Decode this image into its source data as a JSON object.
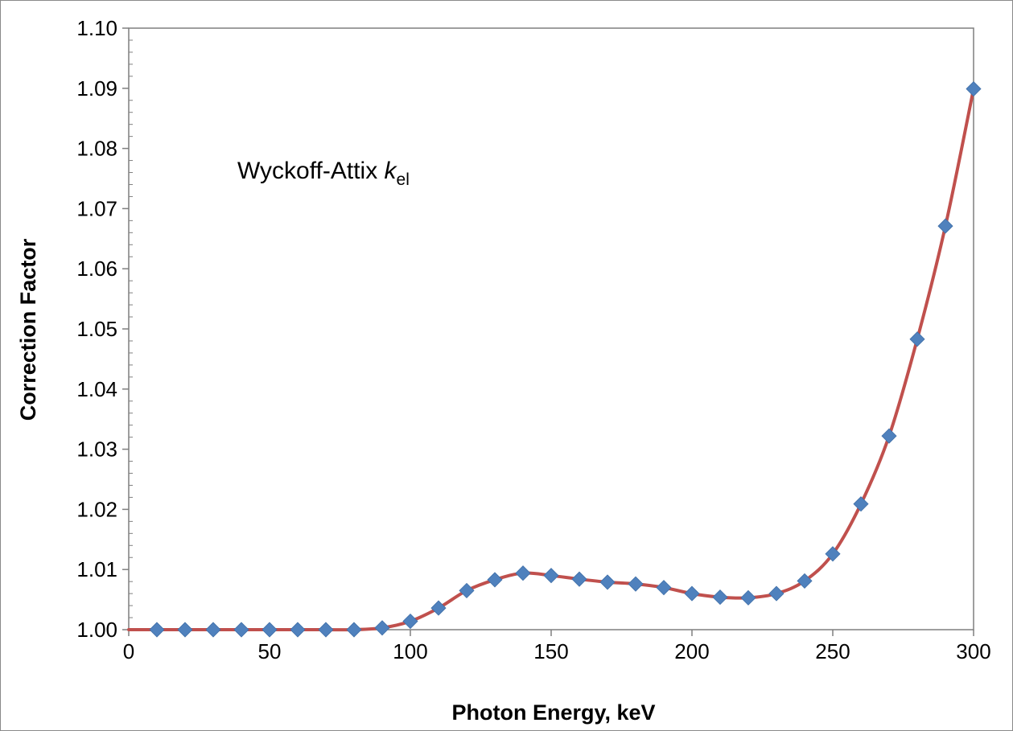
{
  "chart_data": {
    "type": "line",
    "xlabel": "Photon Energy, keV",
    "ylabel": "Correction Factor",
    "xlim": [
      0,
      300
    ],
    "ylim": [
      1.0,
      1.1
    ],
    "x_ticks": [
      "0",
      "50",
      "100",
      "150",
      "200",
      "250",
      "300"
    ],
    "y_ticks": [
      "1.00",
      "1.01",
      "1.02",
      "1.03",
      "1.04",
      "1.05",
      "1.06",
      "1.07",
      "1.08",
      "1.09",
      "1.10"
    ],
    "grid": false,
    "annotation": {
      "text": "Wyckoff-Attix ",
      "symbol": "k",
      "subscript": "el"
    },
    "series": [
      {
        "x": [
          0,
          10,
          20,
          30,
          40,
          50,
          60,
          70,
          80,
          90,
          100,
          110,
          120,
          130,
          140,
          150,
          160,
          170,
          180,
          190,
          200,
          210,
          220,
          230,
          240,
          250,
          260,
          270,
          280,
          290,
          300
        ],
        "y": [
          1.0,
          1.0,
          1.0,
          1.0,
          1.0,
          1.0,
          1.0,
          1.0,
          1.0,
          1.0003,
          1.0014,
          1.0036,
          1.0065,
          1.0083,
          1.0094,
          1.009,
          1.0084,
          1.0079,
          1.0076,
          1.007,
          1.006,
          1.0054,
          1.0053,
          1.006,
          1.0081,
          1.0126,
          1.0209,
          1.0322,
          1.0483,
          1.0671,
          1.0899
        ],
        "markers": [
          false,
          true,
          true,
          true,
          true,
          true,
          true,
          true,
          true,
          true,
          true,
          true,
          true,
          true,
          true,
          true,
          true,
          true,
          true,
          true,
          true,
          true,
          true,
          true,
          true,
          true,
          true,
          true,
          true,
          true,
          true
        ],
        "line_color": "#c0504d",
        "marker_color": "#4f81bd",
        "marker": "diamond"
      }
    ]
  }
}
